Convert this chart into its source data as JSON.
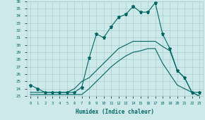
{
  "xlabel": "Humidex (Indice chaleur)",
  "xlim": [
    -0.5,
    23.5
  ],
  "ylim": [
    23,
    36
  ],
  "yticks": [
    23,
    24,
    25,
    26,
    27,
    28,
    29,
    30,
    31,
    32,
    33,
    34,
    35,
    36
  ],
  "xticks": [
    0,
    1,
    2,
    3,
    4,
    5,
    6,
    7,
    8,
    9,
    10,
    11,
    12,
    13,
    14,
    15,
    16,
    17,
    18,
    19,
    20,
    21,
    22,
    23
  ],
  "bg_color": "#cee9e9",
  "grid_color": "#aacfcf",
  "line_color": "#006666",
  "line1_x": [
    0,
    1,
    2,
    3,
    4,
    5,
    6,
    7,
    8,
    9,
    10,
    11,
    12,
    13,
    14,
    15,
    16,
    17,
    18,
    19,
    20,
    21,
    22,
    23
  ],
  "line1_y": [
    24.5,
    24.0,
    23.5,
    23.5,
    23.5,
    23.5,
    23.5,
    24.2,
    28.2,
    31.5,
    31.0,
    32.5,
    33.8,
    34.2,
    35.3,
    34.5,
    34.5,
    35.8,
    31.5,
    29.5,
    26.5,
    25.5,
    23.5,
    23.5
  ],
  "line2_x": [
    0,
    10,
    21,
    22,
    23
  ],
  "line2_y": [
    23.0,
    23.0,
    23.0,
    23.0,
    23.0
  ],
  "line3_x": [
    0,
    1,
    2,
    3,
    4,
    5,
    6,
    7,
    8,
    9,
    10,
    11,
    12,
    13,
    14,
    15,
    16,
    17,
    18,
    19,
    20,
    21,
    22,
    23
  ],
  "line3_y": [
    23.5,
    23.5,
    23.5,
    23.5,
    23.5,
    23.5,
    24.0,
    25.0,
    25.5,
    26.5,
    27.5,
    28.5,
    29.5,
    30.0,
    30.5,
    30.5,
    30.5,
    30.5,
    29.8,
    29.2,
    26.5,
    25.5,
    23.5,
    23.0
  ],
  "line4_x": [
    0,
    1,
    2,
    3,
    4,
    5,
    6,
    7,
    8,
    9,
    10,
    11,
    12,
    13,
    14,
    15,
    16,
    17,
    18,
    19,
    20,
    21,
    22,
    23
  ],
  "line4_y": [
    23.2,
    23.2,
    23.2,
    23.2,
    23.2,
    23.2,
    23.2,
    23.2,
    24.0,
    25.0,
    26.0,
    27.0,
    27.8,
    28.5,
    29.0,
    29.2,
    29.5,
    29.5,
    27.5,
    26.0,
    24.5,
    24.0,
    23.5,
    23.0
  ]
}
